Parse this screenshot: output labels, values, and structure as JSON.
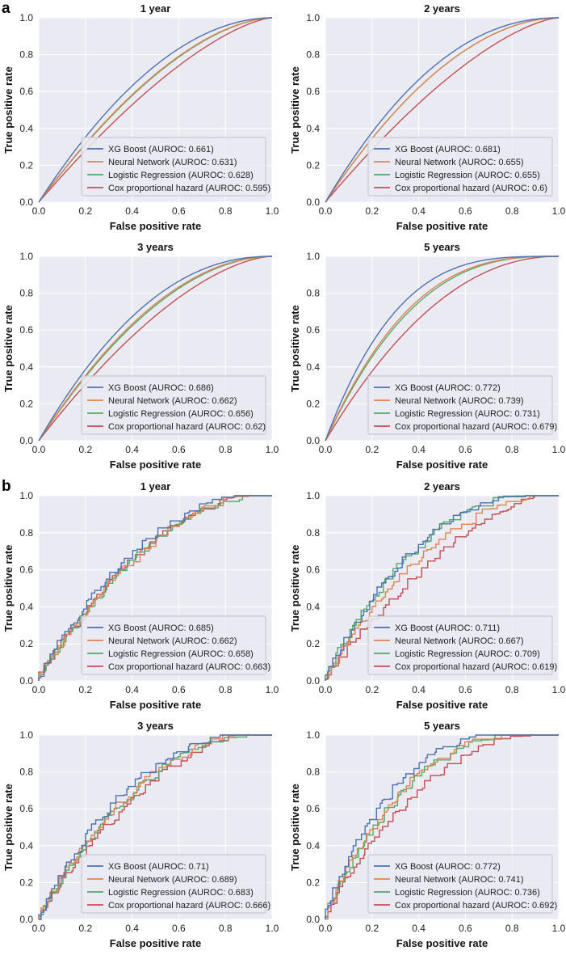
{
  "panel_labels": [
    "a",
    "b"
  ],
  "style": {
    "plot_background": "#eaeaf2",
    "grid_color": "#ffffff",
    "series_colors": {
      "xgboost": "#4c72b0",
      "neural_network": "#dd8452",
      "logistic_regression": "#55a868",
      "cox": "#c44e52"
    }
  },
  "chart_data": [
    {
      "panel": "a",
      "type": "line",
      "title": "1 year",
      "xlabel": "False positive rate",
      "ylabel": "True positive rate",
      "xlim": [
        0,
        1
      ],
      "ylim": [
        0,
        1
      ],
      "xticks": [
        "0.0",
        "0.2",
        "0.4",
        "0.6",
        "0.8",
        "1.0"
      ],
      "yticks": [
        "0.0",
        "0.2",
        "0.4",
        "0.6",
        "0.8",
        "1.0"
      ],
      "grid": true,
      "legend_position": "lower-right",
      "series": [
        {
          "name": "XG Boost",
          "legend": "XG Boost (AUROC: 0.661)",
          "color": "#4c72b0",
          "auroc": 0.661
        },
        {
          "name": "Neural Network",
          "legend": "Neural Network (AUROC: 0.631)",
          "color": "#dd8452",
          "auroc": 0.631
        },
        {
          "name": "Logistic Regression",
          "legend": "Logistic Regression (AUROC: 0.628)",
          "color": "#55a868",
          "auroc": 0.628
        },
        {
          "name": "Cox proportional hazard",
          "legend": "Cox proportional hazard (AUROC: 0.595)",
          "color": "#c44e52",
          "auroc": 0.595
        }
      ]
    },
    {
      "panel": "a",
      "type": "line",
      "title": "2 years",
      "xlabel": "False positive rate",
      "ylabel": "True positive rate",
      "xlim": [
        0,
        1
      ],
      "ylim": [
        0,
        1
      ],
      "xticks": [
        "0.0",
        "0.2",
        "0.4",
        "0.6",
        "0.8",
        "1.0"
      ],
      "yticks": [
        "0.0",
        "0.2",
        "0.4",
        "0.6",
        "0.8",
        "1.0"
      ],
      "grid": true,
      "legend_position": "lower-right",
      "series": [
        {
          "name": "XG Boost",
          "legend": "XG Boost (AUROC: 0.681)",
          "color": "#4c72b0",
          "auroc": 0.681
        },
        {
          "name": "Neural Network",
          "legend": "Neural Network (AUROC: 0.655)",
          "color": "#dd8452",
          "auroc": 0.655
        },
        {
          "name": "Logistic Regression",
          "legend": "Logistic Regression (AUROC: 0.655)",
          "color": "#55a868",
          "auroc": 0.655
        },
        {
          "name": "Cox proportional hazard",
          "legend": "Cox proportional hazard (AUROC: 0.6)",
          "color": "#c44e52",
          "auroc": 0.6
        }
      ]
    },
    {
      "panel": "a",
      "type": "line",
      "title": "3 years",
      "xlabel": "False positive rate",
      "ylabel": "True positive rate",
      "xlim": [
        0,
        1
      ],
      "ylim": [
        0,
        1
      ],
      "xticks": [
        "0.0",
        "0.2",
        "0.4",
        "0.6",
        "0.8",
        "1.0"
      ],
      "yticks": [
        "0.0",
        "0.2",
        "0.4",
        "0.6",
        "0.8",
        "1.0"
      ],
      "grid": true,
      "legend_position": "lower-right",
      "series": [
        {
          "name": "XG Boost",
          "legend": "XG Boost (AUROC: 0.686)",
          "color": "#4c72b0",
          "auroc": 0.686
        },
        {
          "name": "Neural Network",
          "legend": "Neural Network (AUROC: 0.662)",
          "color": "#dd8452",
          "auroc": 0.662
        },
        {
          "name": "Logistic Regression",
          "legend": "Logistic Regression (AUROC: 0.656)",
          "color": "#55a868",
          "auroc": 0.656
        },
        {
          "name": "Cox proportional hazard",
          "legend": "Cox proportional hazard (AUROC: 0.62)",
          "color": "#c44e52",
          "auroc": 0.62
        }
      ]
    },
    {
      "panel": "a",
      "type": "line",
      "title": "5 years",
      "xlabel": "False positive rate",
      "ylabel": "True positive rate",
      "xlim": [
        0,
        1
      ],
      "ylim": [
        0,
        1
      ],
      "xticks": [
        "0.0",
        "0.2",
        "0.4",
        "0.6",
        "0.8",
        "1.0"
      ],
      "yticks": [
        "0.0",
        "0.2",
        "0.4",
        "0.6",
        "0.8",
        "1.0"
      ],
      "grid": true,
      "legend_position": "lower-right",
      "series": [
        {
          "name": "XG Boost",
          "legend": "XG Boost (AUROC: 0.772)",
          "color": "#4c72b0",
          "auroc": 0.772
        },
        {
          "name": "Neural Network",
          "legend": "Neural Network (AUROC: 0.739)",
          "color": "#dd8452",
          "auroc": 0.739
        },
        {
          "name": "Logistic Regression",
          "legend": "Logistic Regression (AUROC: 0.731)",
          "color": "#55a868",
          "auroc": 0.731
        },
        {
          "name": "Cox proportional hazard",
          "legend": "Cox proportional hazard (AUROC: 0.679)",
          "color": "#c44e52",
          "auroc": 0.679
        }
      ]
    },
    {
      "panel": "b",
      "type": "line",
      "title": "1 year",
      "xlabel": "False positive rate",
      "ylabel": "True positive rate",
      "xlim": [
        0,
        1
      ],
      "ylim": [
        0,
        1
      ],
      "xticks": [
        "0.0",
        "0.2",
        "0.4",
        "0.6",
        "0.8",
        "1.0"
      ],
      "yticks": [
        "0.0",
        "0.2",
        "0.4",
        "0.6",
        "0.8",
        "1.0"
      ],
      "grid": true,
      "legend_position": "lower-right",
      "series": [
        {
          "name": "XG Boost",
          "legend": "XG Boost (AUROC: 0.685)",
          "color": "#4c72b0",
          "auroc": 0.685
        },
        {
          "name": "Neural Network",
          "legend": "Neural Network (AUROC: 0.662)",
          "color": "#dd8452",
          "auroc": 0.662
        },
        {
          "name": "Logistic Regression",
          "legend": "Logistic Regression (AUROC: 0.658)",
          "color": "#55a868",
          "auroc": 0.658
        },
        {
          "name": "Cox proportional hazard",
          "legend": "Cox proportional hazard (AUROC: 0.663)",
          "color": "#c44e52",
          "auroc": 0.663
        }
      ]
    },
    {
      "panel": "b",
      "type": "line",
      "title": "2 years",
      "xlabel": "False positive rate",
      "ylabel": "True positive rate",
      "xlim": [
        0,
        1
      ],
      "ylim": [
        0,
        1
      ],
      "xticks": [
        "0.0",
        "0.2",
        "0.4",
        "0.6",
        "0.8",
        "1.0"
      ],
      "yticks": [
        "0.0",
        "0.2",
        "0.4",
        "0.6",
        "0.8",
        "1.0"
      ],
      "grid": true,
      "legend_position": "lower-right",
      "series": [
        {
          "name": "XG Boost",
          "legend": "XG Boost (AUROC: 0.711)",
          "color": "#4c72b0",
          "auroc": 0.711
        },
        {
          "name": "Neural Network",
          "legend": "Neural Network (AUROC: 0.667)",
          "color": "#dd8452",
          "auroc": 0.667
        },
        {
          "name": "Logistic Regression",
          "legend": "Logistic Regression (AUROC: 0.709)",
          "color": "#55a868",
          "auroc": 0.709
        },
        {
          "name": "Cox proportional hazard",
          "legend": "Cox proportional hazard (AUROC: 0.619)",
          "color": "#c44e52",
          "auroc": 0.619
        }
      ]
    },
    {
      "panel": "b",
      "type": "line",
      "title": "3 years",
      "xlabel": "False positive rate",
      "ylabel": "True positive rate",
      "xlim": [
        0,
        1
      ],
      "ylim": [
        0,
        1
      ],
      "xticks": [
        "0.0",
        "0.2",
        "0.4",
        "0.6",
        "0.8",
        "1.0"
      ],
      "yticks": [
        "0.0",
        "0.2",
        "0.4",
        "0.6",
        "0.8",
        "1.0"
      ],
      "grid": true,
      "legend_position": "lower-right",
      "series": [
        {
          "name": "XG Boost",
          "legend": "XG Boost (AUROC: 0.71)",
          "color": "#4c72b0",
          "auroc": 0.71
        },
        {
          "name": "Neural Network",
          "legend": "Neural Network (AUROC: 0.689)",
          "color": "#dd8452",
          "auroc": 0.689
        },
        {
          "name": "Logistic Regression",
          "legend": "Logistic Regression (AUROC: 0.683)",
          "color": "#55a868",
          "auroc": 0.683
        },
        {
          "name": "Cox proportional hazard",
          "legend": "Cox proportional hazard (AUROC: 0.666)",
          "color": "#c44e52",
          "auroc": 0.666
        }
      ]
    },
    {
      "panel": "b",
      "type": "line",
      "title": "5 years",
      "xlabel": "False positive rate",
      "ylabel": "True positive rate",
      "xlim": [
        0,
        1
      ],
      "ylim": [
        0,
        1
      ],
      "xticks": [
        "0.0",
        "0.2",
        "0.4",
        "0.6",
        "0.8",
        "1.0"
      ],
      "yticks": [
        "0.0",
        "0.2",
        "0.4",
        "0.6",
        "0.8",
        "1.0"
      ],
      "grid": true,
      "legend_position": "lower-right",
      "series": [
        {
          "name": "XG Boost",
          "legend": "XG Boost (AUROC: 0.772)",
          "color": "#4c72b0",
          "auroc": 0.772
        },
        {
          "name": "Neural Network",
          "legend": "Neural Network (AUROC: 0.741)",
          "color": "#dd8452",
          "auroc": 0.741
        },
        {
          "name": "Logistic Regression",
          "legend": "Logistic Regression (AUROC: 0.736)",
          "color": "#55a868",
          "auroc": 0.736
        },
        {
          "name": "Cox proportional hazard",
          "legend": "Cox proportional hazard (AUROC: 0.692)",
          "color": "#c44e52",
          "auroc": 0.692
        }
      ]
    }
  ]
}
